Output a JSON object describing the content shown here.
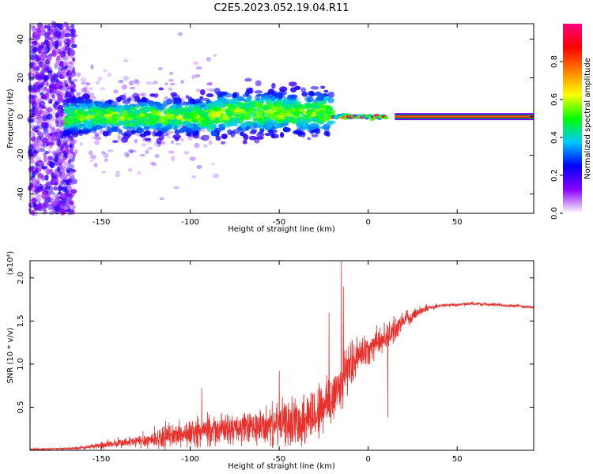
{
  "figure_title": "C2E5.2023.052.19.04.R11",
  "chart_data": [
    {
      "type": "heatmap",
      "title": "C2E5.2023.052.19.04.R11",
      "xlabel": "Height of straight line (km)",
      "ylabel": "Frequency (Hz)",
      "xlim": [
        -190,
        93
      ],
      "ylim": [
        -50,
        48
      ],
      "x_ticks": [
        -150,
        -100,
        -50,
        0,
        50
      ],
      "x_tick_labels": [
        "-150",
        "-100",
        "-50",
        "0",
        "50"
      ],
      "y_ticks": [
        40,
        20,
        0,
        -20,
        -40
      ],
      "y_tick_labels": [
        "40",
        "20",
        "0",
        "-20",
        "-40"
      ],
      "grid": false,
      "colorbar": {
        "label": "Normalized spectral amplitude",
        "range": [
          0,
          1
        ],
        "ticks": [
          0.0,
          0.2,
          0.4,
          0.6,
          0.8
        ],
        "tick_labels": [
          "0.0",
          "0.2",
          "0.4",
          "0.6",
          "0.8"
        ],
        "colormap": "rainbow",
        "stops": [
          "#ffffff",
          "#8a00ff",
          "#0000ff",
          "#00c8ff",
          "#00ff00",
          "#ffff00",
          "#ff8000",
          "#ff0000",
          "#ff0080"
        ]
      },
      "features": [
        {
          "name": "scattered low-amplitude noise",
          "x_range": [
            -190,
            -165
          ],
          "freq_range": [
            -50,
            48
          ],
          "amplitude": 0.1
        },
        {
          "name": "broad doppler band",
          "x_range": [
            -170,
            -20
          ],
          "freq_center": 0,
          "freq_halfwidth": 8,
          "amplitude": 0.35
        },
        {
          "name": "narrow peaked line",
          "x_range": [
            -20,
            10
          ],
          "freq_center": 0,
          "freq_halfwidth": 1.5,
          "amplitude": 0.7
        },
        {
          "name": "steady carrier line",
          "x_range": [
            15,
            93
          ],
          "freq_center": 0,
          "freq_halfwidth": 1,
          "amplitude": 0.9
        }
      ]
    },
    {
      "type": "line",
      "title": "",
      "xlabel": "Height of straight line (km)",
      "ylabel": "SNR (10 * v/v)",
      "y_scale_note": "(x10⁴)",
      "xlim": [
        -190,
        93
      ],
      "ylim": [
        0,
        2.2
      ],
      "x_ticks": [
        -150,
        -100,
        -50,
        0,
        50
      ],
      "x_tick_labels": [
        "-150",
        "-100",
        "-50",
        "0",
        "50"
      ],
      "y_ticks": [
        2.0,
        1.5,
        1.0,
        0.5
      ],
      "y_tick_labels": [
        "2.0",
        "1.5",
        "1.0",
        "0.5"
      ],
      "grid": false,
      "series": [
        {
          "name": "SNR",
          "color": "#e8302c",
          "x": [
            -190,
            -170,
            -160,
            -150,
            -140,
            -130,
            -120,
            -110,
            -100,
            -90,
            -80,
            -70,
            -60,
            -50,
            -40,
            -30,
            -20,
            -15,
            -10,
            -5,
            0,
            5,
            10,
            15,
            20,
            30,
            40,
            50,
            60,
            70,
            80,
            93
          ],
          "baseline": [
            0.01,
            0.02,
            0.03,
            0.06,
            0.08,
            0.1,
            0.13,
            0.17,
            0.2,
            0.22,
            0.24,
            0.25,
            0.27,
            0.3,
            0.34,
            0.42,
            0.6,
            0.8,
            1.0,
            1.1,
            1.18,
            1.25,
            1.32,
            1.4,
            1.5,
            1.63,
            1.68,
            1.69,
            1.7,
            1.69,
            1.68,
            1.66
          ],
          "jitter": [
            0.01,
            0.01,
            0.02,
            0.04,
            0.05,
            0.07,
            0.1,
            0.13,
            0.15,
            0.16,
            0.17,
            0.18,
            0.2,
            0.24,
            0.28,
            0.32,
            0.35,
            0.3,
            0.25,
            0.2,
            0.18,
            0.16,
            0.15,
            0.13,
            0.1,
            0.05,
            0.02,
            0.02,
            0.02,
            0.02,
            0.02,
            0.02
          ],
          "spikes": [
            {
              "x": -93.5,
              "value": 0.72
            },
            {
              "x": -50,
              "value": 0.92
            },
            {
              "x": -22,
              "value": 1.6
            },
            {
              "x": -15,
              "value": 2.2
            },
            {
              "x": -14,
              "value": 1.9
            },
            {
              "x": 11,
              "value": 0.38
            },
            {
              "x": 13,
              "value": 1.45
            }
          ]
        }
      ]
    }
  ]
}
